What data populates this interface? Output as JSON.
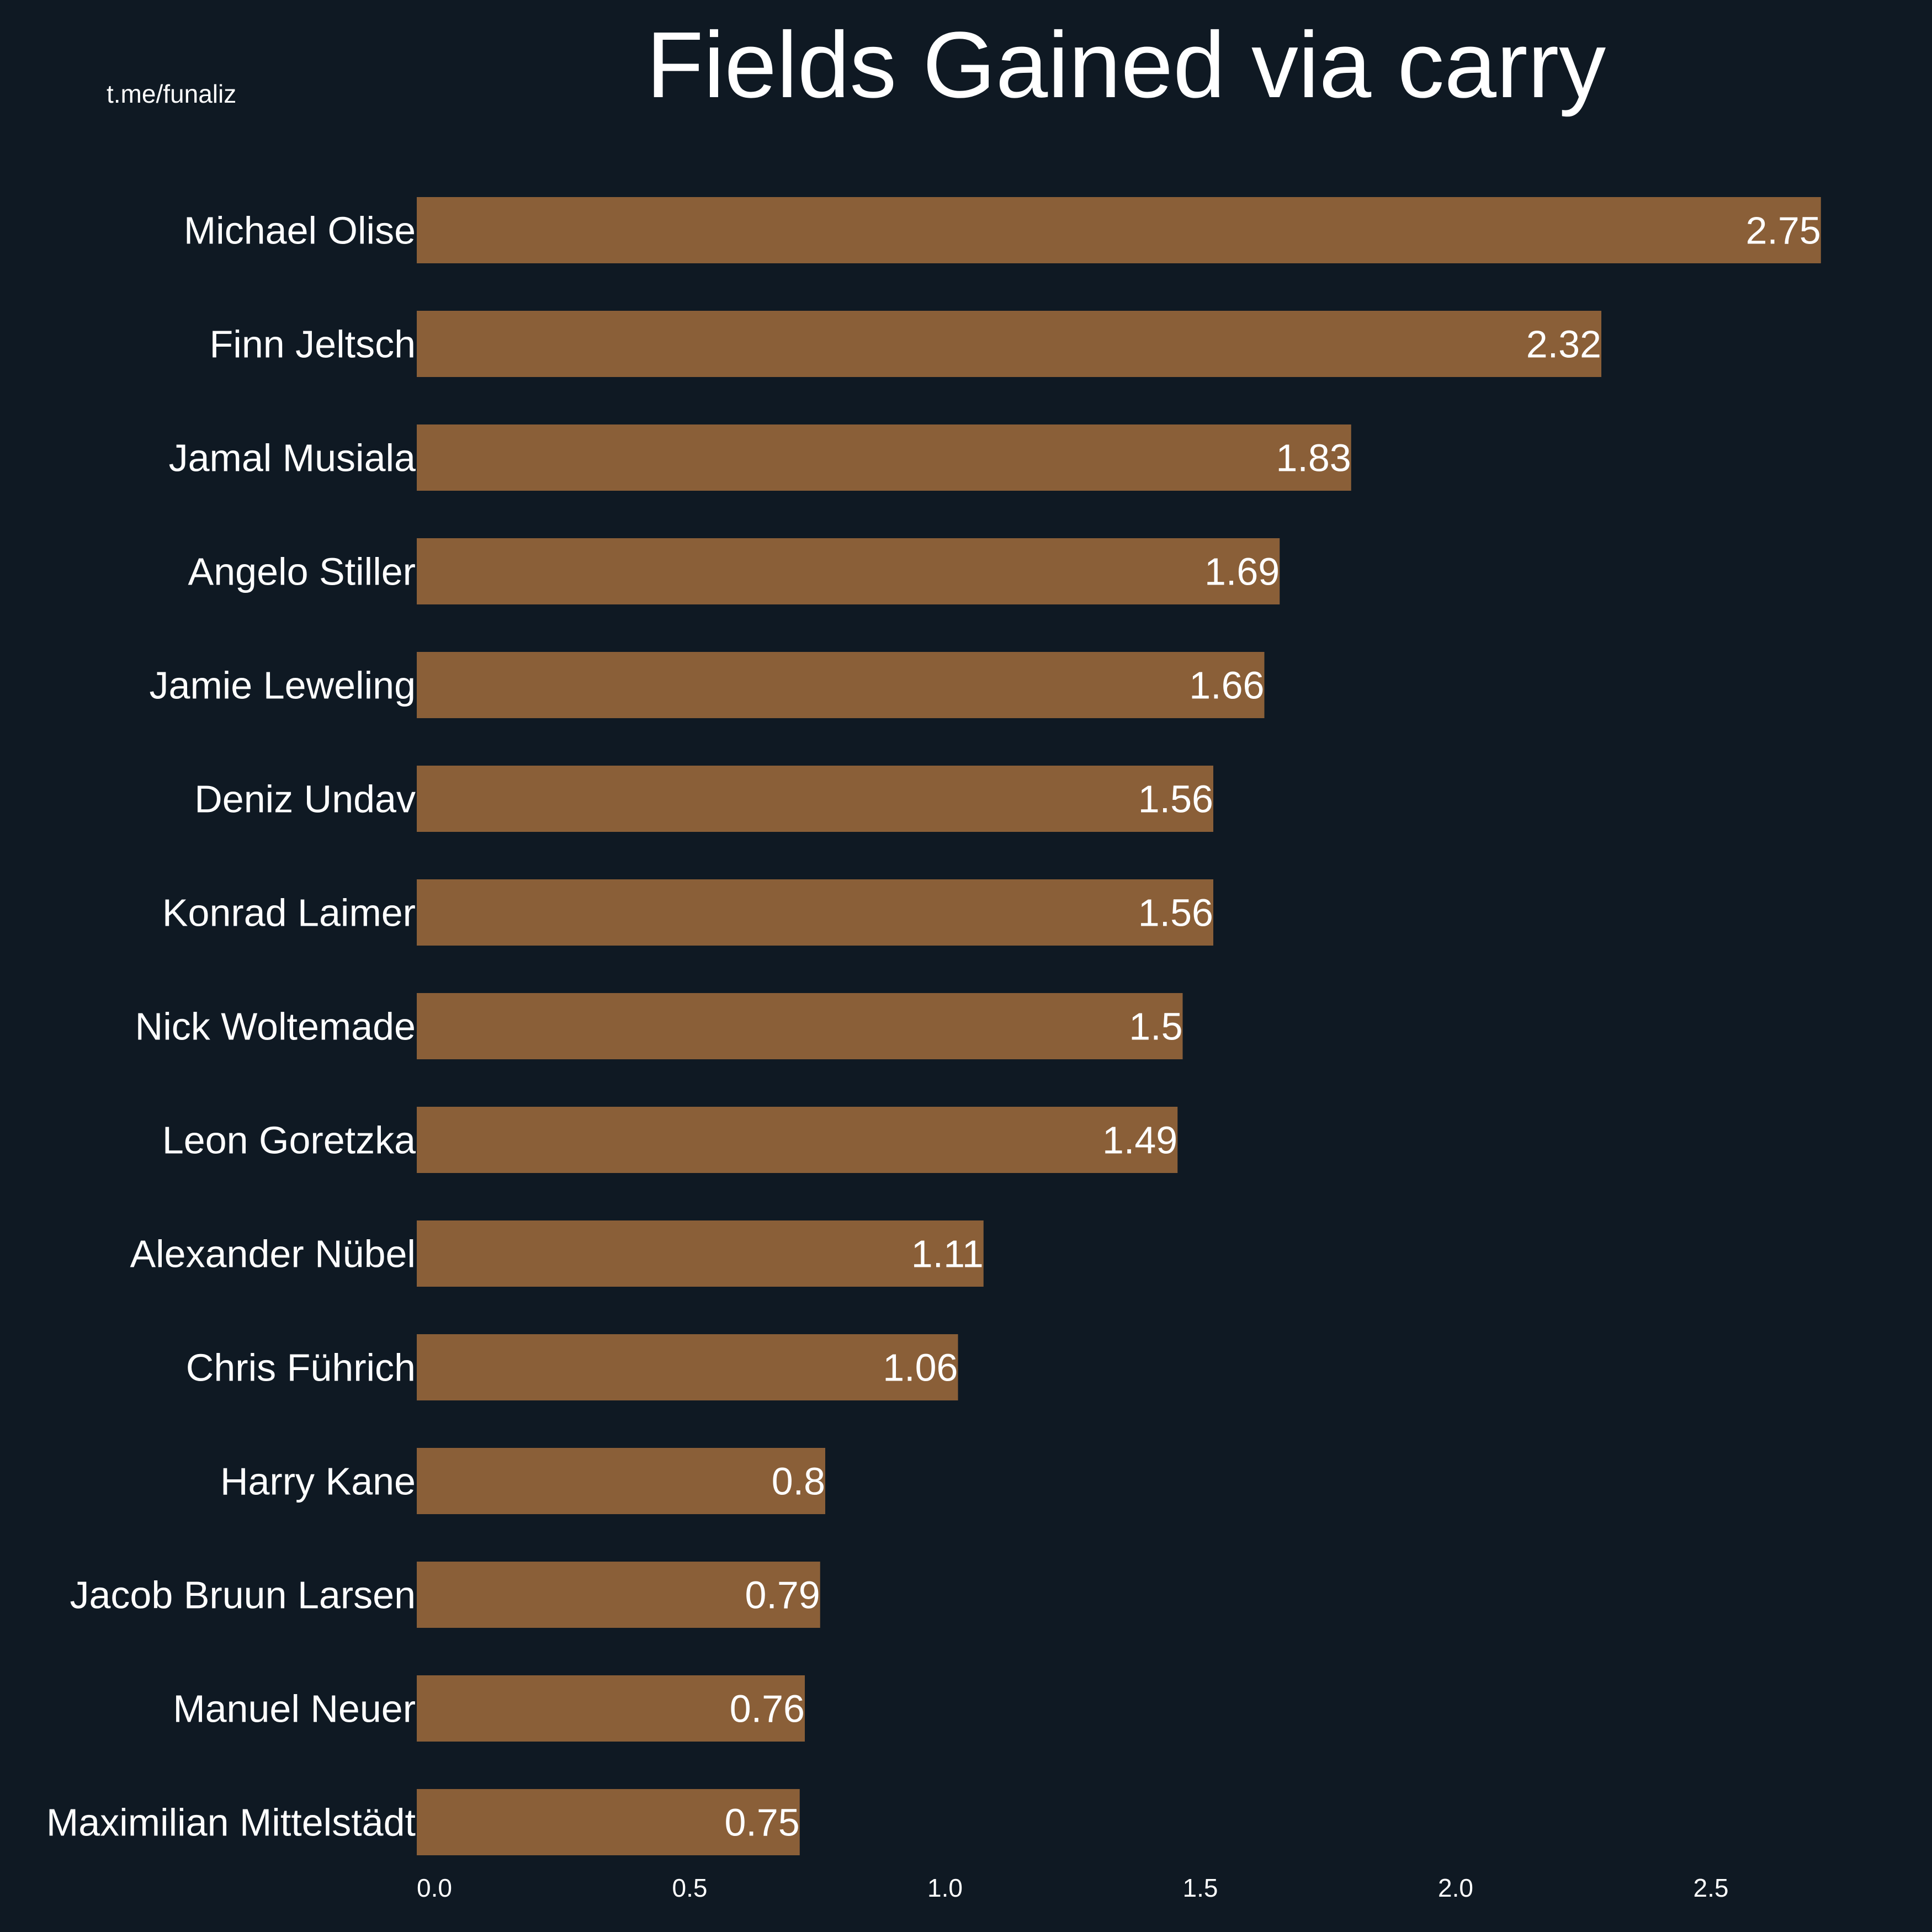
{
  "watermark": "t.me/funaliz",
  "colors": {
    "background": "#0f1923",
    "bar": "#8a5f38",
    "text": "#ffffff"
  },
  "chart_data": {
    "type": "bar",
    "orientation": "horizontal",
    "title": "Fields Gained via carry",
    "xlabel": "",
    "ylabel": "",
    "categories": [
      "Michael Olise",
      "Finn Jeltsch",
      "Jamal Musiala",
      "Angelo Stiller",
      "Jamie Leweling",
      "Deniz Undav",
      "Konrad Laimer",
      "Nick Woltemade",
      "Leon Goretzka",
      "Alexander Nübel",
      "Chris Führich",
      "Harry Kane",
      "Jacob Bruun Larsen",
      "Manuel Neuer",
      "Maximilian Mittelstädt"
    ],
    "values": [
      2.75,
      2.32,
      1.83,
      1.69,
      1.66,
      1.56,
      1.56,
      1.5,
      1.49,
      1.11,
      1.06,
      0.8,
      0.79,
      0.76,
      0.75
    ],
    "value_labels": [
      "2.75",
      "2.32",
      "1.83",
      "1.69",
      "1.66",
      "1.56",
      "1.56",
      "1.5",
      "1.49",
      "1.11",
      "1.06",
      "0.8",
      "0.79",
      "0.76",
      "0.75"
    ],
    "xticks": [
      "0.0",
      "0.5",
      "1.0",
      "1.5",
      "2.0",
      "2.5"
    ],
    "xtick_values": [
      0,
      0.5,
      1.0,
      1.5,
      2.0,
      2.5
    ],
    "xlim": [
      0,
      2.85
    ],
    "grid": false,
    "legend": "none"
  }
}
